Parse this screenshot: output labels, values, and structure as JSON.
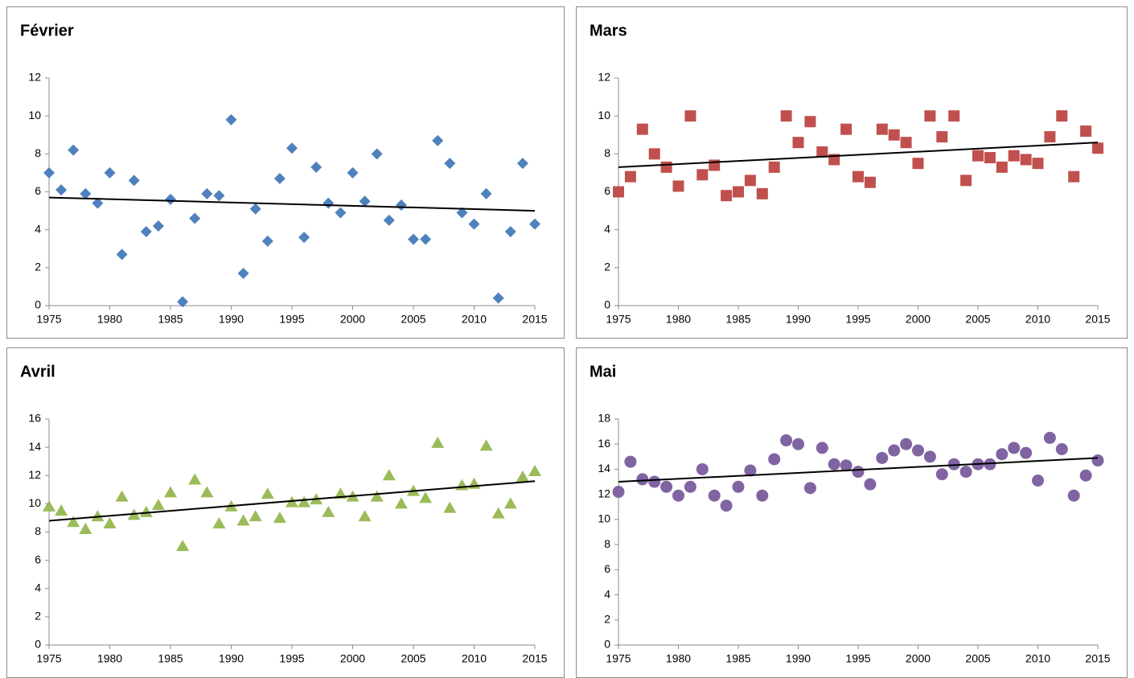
{
  "chart_data": [
    {
      "type": "scatter",
      "title": "Février",
      "marker": "diamond",
      "color": "#4f81bd",
      "x": [
        1975,
        1976,
        1977,
        1978,
        1979,
        1980,
        1981,
        1982,
        1983,
        1984,
        1985,
        1986,
        1987,
        1988,
        1989,
        1990,
        1991,
        1992,
        1993,
        1994,
        1995,
        1996,
        1997,
        1998,
        1999,
        2000,
        2001,
        2002,
        2003,
        2004,
        2005,
        2006,
        2007,
        2008,
        2009,
        2010,
        2011,
        2012,
        2013,
        2014,
        2015
      ],
      "values": [
        7.0,
        6.1,
        8.2,
        5.9,
        5.4,
        7.0,
        2.7,
        6.6,
        3.9,
        4.2,
        5.6,
        0.2,
        4.6,
        5.9,
        5.8,
        9.8,
        1.7,
        5.1,
        3.4,
        6.7,
        8.3,
        3.6,
        7.3,
        5.4,
        4.9,
        7.0,
        5.5,
        8.0,
        4.5,
        5.3,
        3.5,
        3.5,
        8.7,
        7.5,
        4.9,
        4.3,
        5.9,
        0.4,
        3.9,
        7.5,
        4.3
      ],
      "trendline": {
        "x": [
          1975,
          2015
        ],
        "values": [
          5.7,
          5.0
        ],
        "color": "#000000"
      },
      "xlim": [
        1975,
        2015
      ],
      "xticks": [
        1975,
        1980,
        1985,
        1990,
        1995,
        2000,
        2005,
        2010,
        2015
      ],
      "ylim": [
        0,
        12
      ],
      "yticks": [
        0,
        2,
        4,
        6,
        8,
        10,
        12
      ]
    },
    {
      "type": "scatter",
      "title": "Mars",
      "marker": "square",
      "color": "#c0504d",
      "x": [
        1975,
        1976,
        1977,
        1978,
        1979,
        1980,
        1981,
        1982,
        1983,
        1984,
        1985,
        1986,
        1987,
        1988,
        1989,
        1990,
        1991,
        1992,
        1993,
        1994,
        1995,
        1996,
        1997,
        1998,
        1999,
        2000,
        2001,
        2002,
        2003,
        2004,
        2005,
        2006,
        2007,
        2008,
        2009,
        2010,
        2011,
        2012,
        2013,
        2014,
        2015
      ],
      "values": [
        6.0,
        6.8,
        9.3,
        8.0,
        7.3,
        6.3,
        10.0,
        6.9,
        7.4,
        5.8,
        6.0,
        6.6,
        5.9,
        7.3,
        10.0,
        8.6,
        9.7,
        8.1,
        7.7,
        9.3,
        6.8,
        6.5,
        9.3,
        9.0,
        8.6,
        7.5,
        10.0,
        8.9,
        10.0,
        6.6,
        7.9,
        7.8,
        7.3,
        7.9,
        7.7,
        7.5,
        8.9,
        10.0,
        6.8,
        9.2,
        8.3
      ],
      "trendline": {
        "x": [
          1975,
          2015
        ],
        "values": [
          7.3,
          8.6
        ],
        "color": "#000000"
      },
      "xlim": [
        1975,
        2015
      ],
      "xticks": [
        1975,
        1980,
        1985,
        1990,
        1995,
        2000,
        2005,
        2010,
        2015
      ],
      "ylim": [
        0,
        12
      ],
      "yticks": [
        0,
        2,
        4,
        6,
        8,
        10,
        12
      ]
    },
    {
      "type": "scatter",
      "title": "Avril",
      "marker": "triangle",
      "color": "#9bbb59",
      "x": [
        1975,
        1976,
        1977,
        1978,
        1979,
        1980,
        1981,
        1982,
        1983,
        1984,
        1985,
        1986,
        1987,
        1988,
        1989,
        1990,
        1991,
        1992,
        1993,
        1994,
        1995,
        1996,
        1997,
        1998,
        1999,
        2000,
        2001,
        2002,
        2003,
        2004,
        2005,
        2006,
        2007,
        2008,
        2009,
        2010,
        2011,
        2012,
        2013,
        2014,
        2015
      ],
      "values": [
        9.8,
        9.5,
        8.7,
        8.2,
        9.1,
        8.6,
        10.5,
        9.2,
        9.4,
        9.9,
        10.8,
        7.0,
        11.7,
        10.8,
        8.6,
        9.8,
        8.8,
        9.1,
        10.7,
        9.0,
        10.1,
        10.1,
        10.3,
        9.4,
        10.7,
        10.5,
        9.1,
        10.5,
        12.0,
        10.0,
        10.9,
        10.4,
        14.3,
        9.7,
        11.3,
        11.4,
        14.1,
        9.3,
        10.0,
        11.9,
        12.3
      ],
      "trendline": {
        "x": [
          1975,
          2015
        ],
        "values": [
          8.8,
          11.6
        ],
        "color": "#000000"
      },
      "xlim": [
        1975,
        2015
      ],
      "xticks": [
        1975,
        1980,
        1985,
        1990,
        1995,
        2000,
        2005,
        2010,
        2015
      ],
      "ylim": [
        0,
        16
      ],
      "yticks": [
        0,
        2,
        4,
        6,
        8,
        10,
        12,
        14,
        16
      ]
    },
    {
      "type": "scatter",
      "title": "Mai",
      "marker": "circle",
      "color": "#8064a2",
      "x": [
        1975,
        1976,
        1977,
        1978,
        1979,
        1980,
        1981,
        1982,
        1983,
        1984,
        1985,
        1986,
        1987,
        1988,
        1989,
        1990,
        1991,
        1992,
        1993,
        1994,
        1995,
        1996,
        1997,
        1998,
        1999,
        2000,
        2001,
        2002,
        2003,
        2004,
        2005,
        2006,
        2007,
        2008,
        2009,
        2010,
        2011,
        2012,
        2013,
        2014,
        2015
      ],
      "values": [
        12.2,
        14.6,
        13.2,
        13.0,
        12.6,
        11.9,
        12.6,
        14.0,
        11.9,
        11.1,
        12.6,
        13.9,
        11.9,
        14.8,
        16.3,
        16.0,
        12.5,
        15.7,
        14.4,
        14.3,
        13.8,
        12.8,
        14.9,
        15.5,
        16.0,
        15.5,
        15.0,
        13.6,
        14.4,
        13.8,
        14.4,
        14.4,
        15.2,
        15.7,
        15.3,
        13.1,
        16.5,
        15.6,
        11.9,
        13.5,
        14.7
      ],
      "trendline": {
        "x": [
          1975,
          2015
        ],
        "values": [
          13.0,
          14.9
        ],
        "color": "#000000"
      },
      "xlim": [
        1975,
        2015
      ],
      "xticks": [
        1975,
        1980,
        1985,
        1990,
        1995,
        2000,
        2005,
        2010,
        2015
      ],
      "ylim": [
        0,
        18
      ],
      "yticks": [
        0,
        2,
        4,
        6,
        8,
        10,
        12,
        14,
        16,
        18
      ]
    }
  ]
}
